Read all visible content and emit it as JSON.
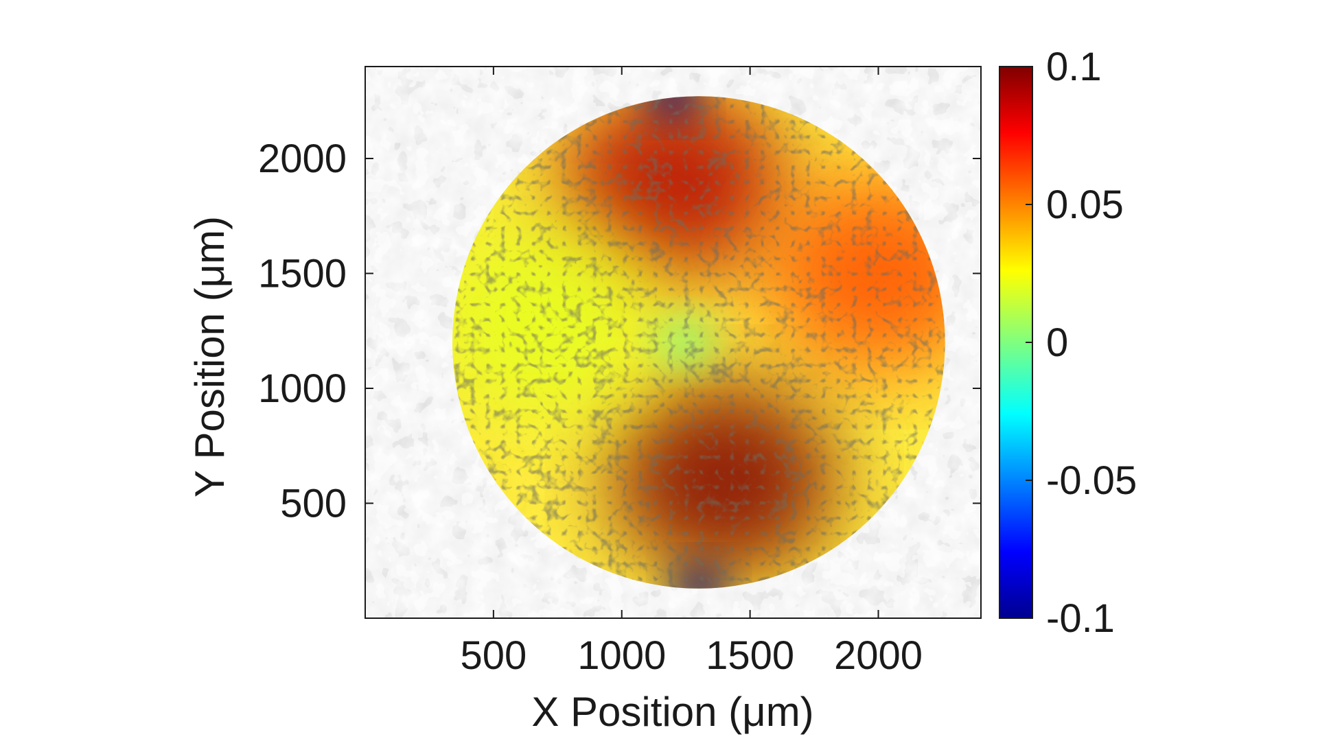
{
  "chart_data": {
    "type": "heatmap",
    "title": "",
    "xlabel": "X Position (μm)",
    "ylabel": "Y Position (μm)",
    "xlim": [
      0,
      2400
    ],
    "ylim": [
      0,
      2400
    ],
    "xticks": [
      500,
      1000,
      1500,
      2000
    ],
    "yticks": [
      500,
      1000,
      1500,
      2000
    ],
    "grid": false,
    "overlay": "colormap over grayscale microscopy image of fibrous network",
    "colormap": "jet",
    "colorbar": {
      "min": -0.1,
      "max": 0.1,
      "ticks": [
        0.1,
        0.05,
        0,
        -0.05,
        -0.1
      ],
      "tick_labels": [
        "0.1",
        "0.05",
        "0",
        "-0.05",
        "-0.1"
      ]
    },
    "field": {
      "region": "circle",
      "center": [
        1300,
        1200
      ],
      "radius": 960,
      "features": [
        {
          "name": "top-high-lobe",
          "x": 1200,
          "y": 1900,
          "value": 0.09
        },
        {
          "name": "right-high-lobe",
          "x": 2000,
          "y": 1500,
          "value": 0.06
        },
        {
          "name": "bottom-high-lobe",
          "x": 1400,
          "y": 600,
          "value": 0.1
        },
        {
          "name": "left-neutral-region",
          "x": 700,
          "y": 1300,
          "value": 0.02
        },
        {
          "name": "center-pore",
          "x": 1250,
          "y": 1200,
          "value": 0.0
        },
        {
          "name": "top-edge-low-spot",
          "x": 1200,
          "y": 2280,
          "value": -0.1
        },
        {
          "name": "bottom-edge-low-spot",
          "x": 1300,
          "y": 130,
          "value": -0.1
        }
      ]
    }
  }
}
